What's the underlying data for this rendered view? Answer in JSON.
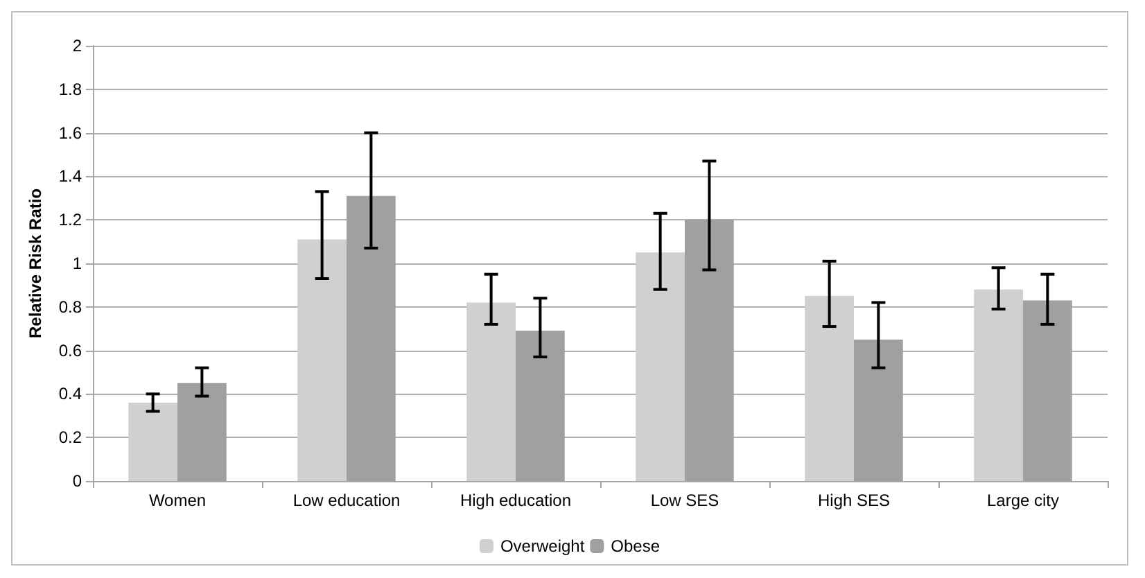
{
  "chart_data": {
    "type": "bar",
    "ylabel": "Relative Risk Ratio",
    "categories": [
      "Women",
      "Low education",
      "High education",
      "Low SES",
      "High SES",
      "Large city"
    ],
    "series": [
      {
        "name": "Overweight",
        "color": "#d0d0d0",
        "values": [
          0.36,
          1.11,
          0.82,
          1.05,
          0.85,
          0.88
        ],
        "errors": [
          [
            0.32,
            0.4
          ],
          [
            0.93,
            1.33
          ],
          [
            0.72,
            0.95
          ],
          [
            0.88,
            1.23
          ],
          [
            0.71,
            1.01
          ],
          [
            0.79,
            0.98
          ]
        ]
      },
      {
        "name": "Obese",
        "color": "#a0a0a0",
        "values": [
          0.45,
          1.31,
          0.69,
          1.2,
          0.65,
          0.83
        ],
        "errors": [
          [
            0.39,
            0.52
          ],
          [
            1.07,
            1.6
          ],
          [
            0.57,
            0.84
          ],
          [
            0.97,
            1.47
          ],
          [
            0.52,
            0.82
          ],
          [
            0.72,
            0.95
          ]
        ]
      }
    ],
    "ylim": [
      0,
      2
    ],
    "yticks": [
      0,
      0.2,
      0.4,
      0.6,
      0.8,
      1,
      1.2,
      1.4,
      1.6,
      1.8,
      2
    ],
    "grid": "y",
    "legend": "bottom"
  }
}
